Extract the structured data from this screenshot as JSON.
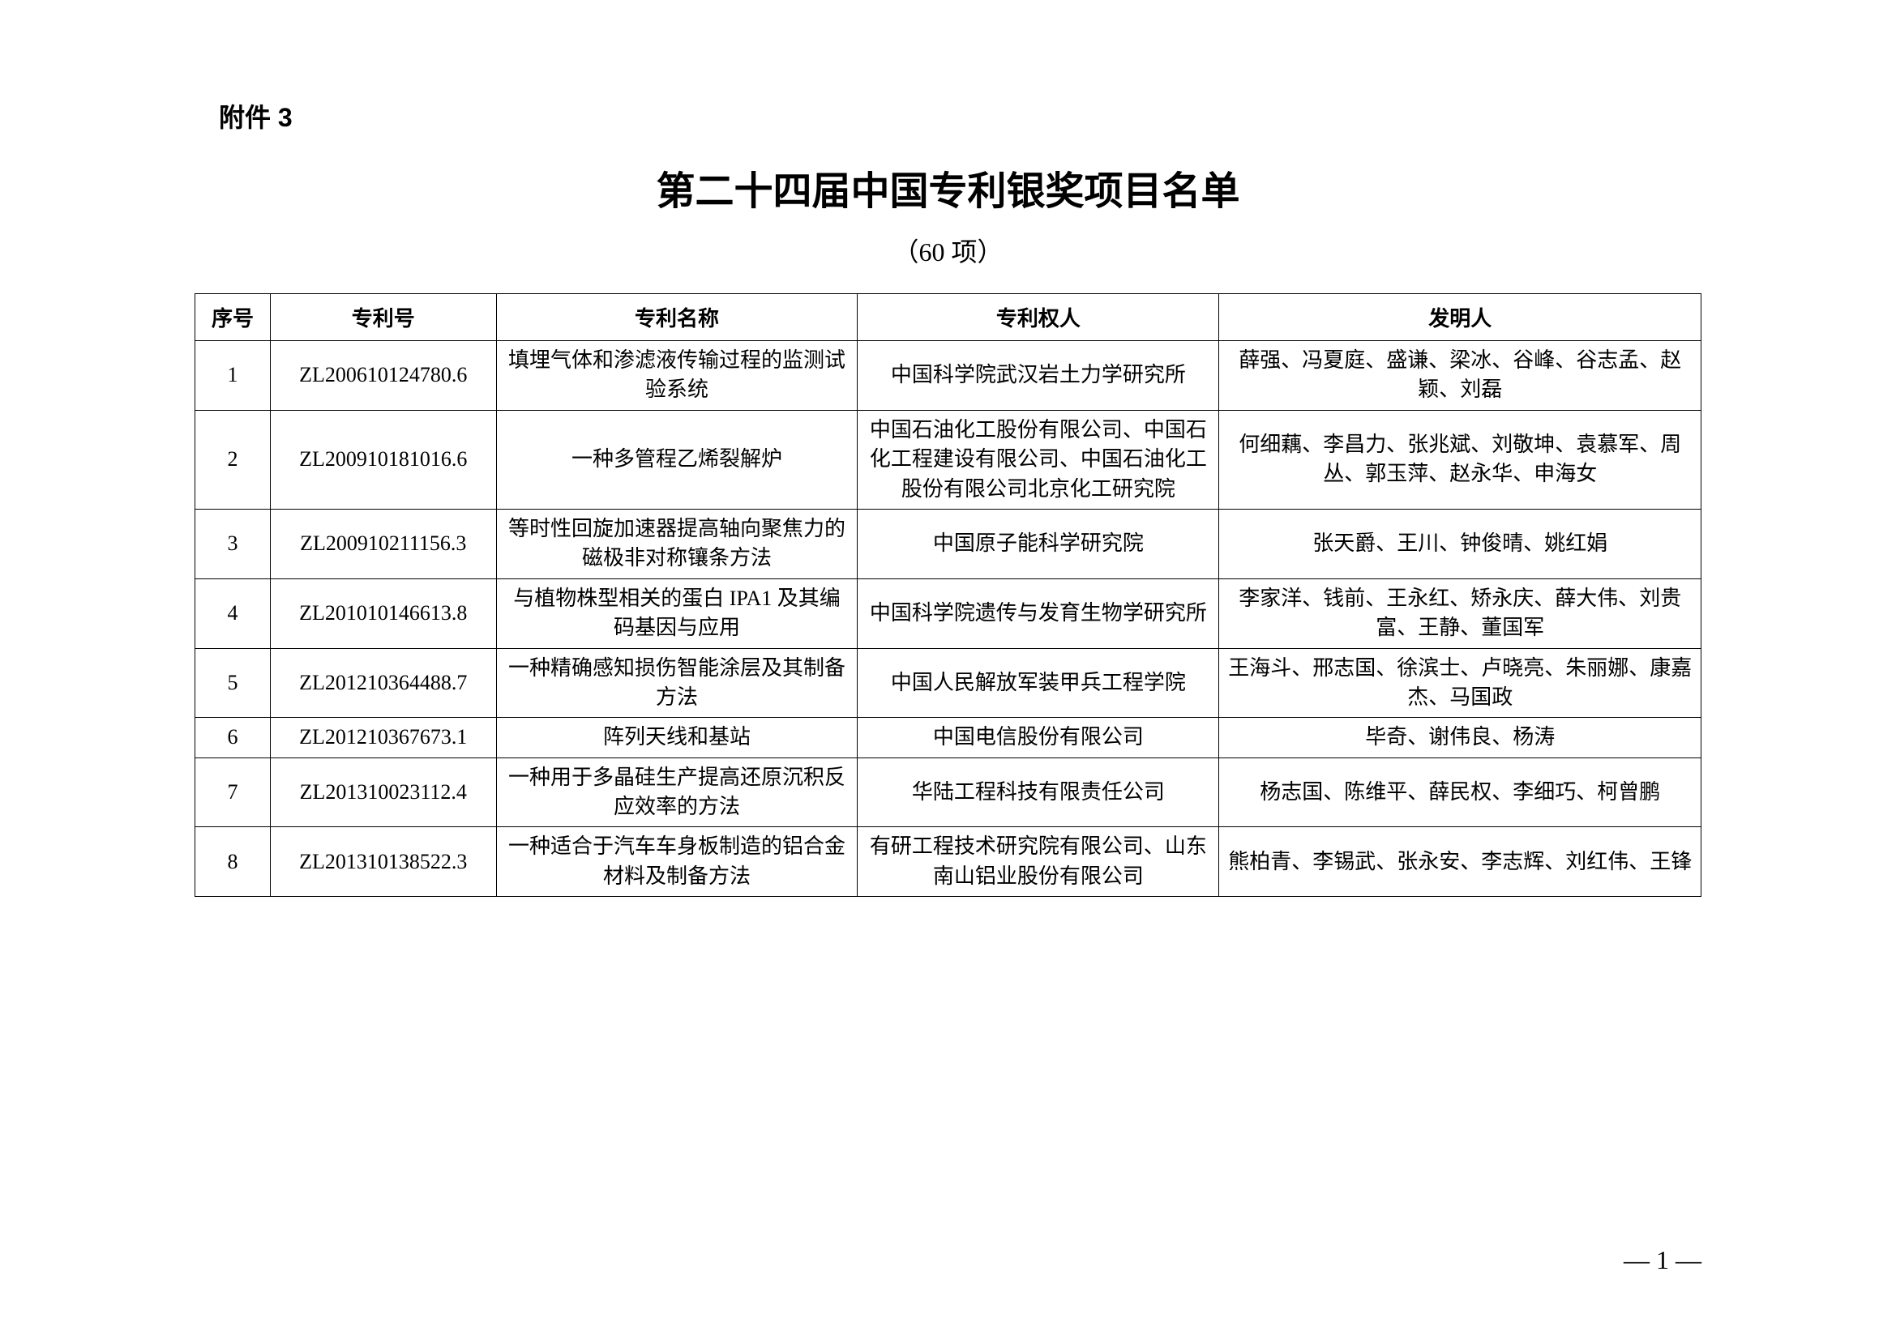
{
  "attachment_label": "附件 3",
  "main_title": "第二十四届中国专利银奖项目名单",
  "subtitle": "（60 项）",
  "page_number": "— 1 —",
  "table": {
    "headers": {
      "num": "序号",
      "patent_no": "专利号",
      "patent_name": "专利名称",
      "holder": "专利权人",
      "inventor": "发明人"
    },
    "rows": [
      {
        "num": "1",
        "patent_no": "ZL200610124780.6",
        "patent_name": "填埋气体和渗滤液传输过程的监测试验系统",
        "holder": "中国科学院武汉岩土力学研究所",
        "inventor": "薛强、冯夏庭、盛谦、梁冰、谷峰、谷志孟、赵颖、刘磊"
      },
      {
        "num": "2",
        "patent_no": "ZL200910181016.6",
        "patent_name": "一种多管程乙烯裂解炉",
        "holder": "中国石油化工股份有限公司、中国石化工程建设有限公司、中国石油化工股份有限公司北京化工研究院",
        "inventor": "何细藕、李昌力、张兆斌、刘敬坤、袁慕军、周丛、郭玉萍、赵永华、申海女"
      },
      {
        "num": "3",
        "patent_no": "ZL200910211156.3",
        "patent_name": "等时性回旋加速器提高轴向聚焦力的磁极非对称镶条方法",
        "holder": "中国原子能科学研究院",
        "inventor": "张天爵、王川、钟俊晴、姚红娟"
      },
      {
        "num": "4",
        "patent_no": "ZL201010146613.8",
        "patent_name": "与植物株型相关的蛋白 IPA1 及其编码基因与应用",
        "holder": "中国科学院遗传与发育生物学研究所",
        "inventor": "李家洋、钱前、王永红、矫永庆、薛大伟、刘贵富、王静、董国军"
      },
      {
        "num": "5",
        "patent_no": "ZL201210364488.7",
        "patent_name": "一种精确感知损伤智能涂层及其制备方法",
        "holder": "中国人民解放军装甲兵工程学院",
        "inventor": "王海斗、邢志国、徐滨士、卢晓亮、朱丽娜、康嘉杰、马国政"
      },
      {
        "num": "6",
        "patent_no": "ZL201210367673.1",
        "patent_name": "阵列天线和基站",
        "holder": "中国电信股份有限公司",
        "inventor": "毕奇、谢伟良、杨涛"
      },
      {
        "num": "7",
        "patent_no": "ZL201310023112.4",
        "patent_name": "一种用于多晶硅生产提高还原沉积反应效率的方法",
        "holder": "华陆工程科技有限责任公司",
        "inventor": "杨志国、陈维平、薛民权、李细巧、柯曾鹏"
      },
      {
        "num": "8",
        "patent_no": "ZL201310138522.3",
        "patent_name": "一种适合于汽车车身板制造的铝合金材料及制备方法",
        "holder": "有研工程技术研究院有限公司、山东南山铝业股份有限公司",
        "inventor": "熊柏青、李锡武、张永安、李志辉、刘红伟、王锋"
      }
    ]
  },
  "styling": {
    "background_color": "#ffffff",
    "border_color": "#000000",
    "font_family_serif": "SimSun",
    "font_family_sans": "SimHei",
    "title_fontsize": 48,
    "body_fontsize": 26,
    "label_fontsize": 32
  }
}
